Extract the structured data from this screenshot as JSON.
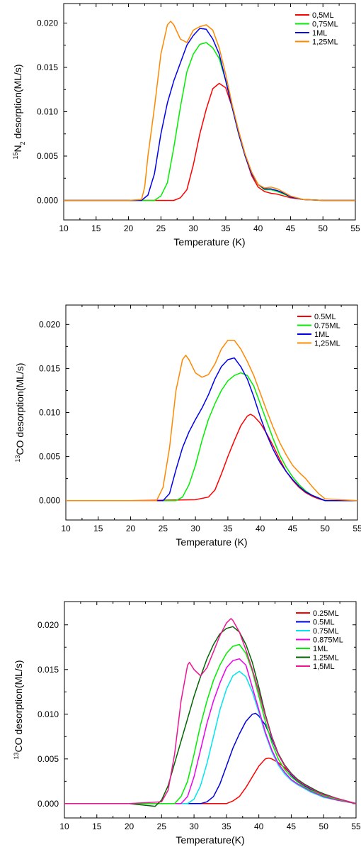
{
  "chart_data": [
    {
      "type": "line",
      "xlabel": "Temperature (K)",
      "ylabel_sup": "15",
      "ylabel_main_a": "N",
      "ylabel_sub": "2",
      "ylabel_main_b": " desorption(ML/s)",
      "xlim": [
        10,
        55
      ],
      "ylim": [
        -0.0022,
        0.0222
      ],
      "xticks": [
        "10",
        "15",
        "20",
        "25",
        "30",
        "35",
        "40",
        "45",
        "50",
        "55"
      ],
      "yticks": [
        "0.000",
        "0.005",
        "0.010",
        "0.015",
        "0.020"
      ],
      "grid": false,
      "legend_position": "top-right",
      "series": [
        {
          "name": "0,5ML",
          "color": "#ff0000",
          "x": [
            10,
            20,
            25,
            27,
            28,
            29,
            30,
            31,
            32,
            33,
            34,
            35,
            36,
            37,
            38,
            39,
            40,
            41,
            42,
            43,
            44,
            45,
            47,
            50,
            55
          ],
          "y": [
            0,
            0,
            0,
            0,
            0.0003,
            0.0012,
            0.004,
            0.0075,
            0.0103,
            0.0126,
            0.0132,
            0.0127,
            0.0105,
            0.0078,
            0.005,
            0.0028,
            0.0015,
            0.001,
            0.0008,
            0.0007,
            0.0005,
            0.0003,
            0.0001,
            0,
            0
          ]
        },
        {
          "name": "0,75ML",
          "color": "#00ee00",
          "x": [
            10,
            20,
            24,
            25,
            26,
            27,
            28,
            29,
            30,
            31,
            32,
            33,
            34,
            35,
            36,
            37,
            38,
            39,
            40,
            41,
            42,
            43,
            44,
            45,
            47,
            50,
            55
          ],
          "y": [
            0,
            0,
            0,
            0.0005,
            0.002,
            0.006,
            0.0105,
            0.0145,
            0.0165,
            0.0176,
            0.0178,
            0.0172,
            0.016,
            0.0135,
            0.0105,
            0.0075,
            0.005,
            0.003,
            0.0018,
            0.0012,
            0.0012,
            0.001,
            0.0007,
            0.0004,
            0.0001,
            0,
            0
          ]
        },
        {
          "name": "1ML",
          "color": "#0000ee",
          "x": [
            10,
            20,
            22,
            23,
            24,
            25,
            26,
            27,
            28,
            29,
            30,
            31,
            32,
            33,
            34,
            35,
            36,
            37,
            38,
            39,
            40,
            41,
            42,
            43,
            44,
            45,
            47,
            50,
            55
          ],
          "y": [
            0,
            0,
            0,
            0.0006,
            0.003,
            0.0075,
            0.011,
            0.0135,
            0.0155,
            0.0175,
            0.0186,
            0.0194,
            0.0193,
            0.0182,
            0.0165,
            0.0135,
            0.0105,
            0.0075,
            0.005,
            0.003,
            0.0018,
            0.0013,
            0.0013,
            0.0011,
            0.0008,
            0.0004,
            0.0001,
            0,
            0
          ]
        },
        {
          "name": "1,25ML",
          "color": "#ff8800",
          "x": [
            10,
            20,
            22,
            22.5,
            23,
            24,
            25,
            26,
            26.5,
            27,
            28,
            29,
            30,
            31,
            32,
            33,
            34,
            35,
            36,
            37,
            38,
            39,
            40,
            41,
            42,
            43,
            44,
            45,
            47,
            50,
            55
          ],
          "y": [
            0,
            0,
            0.0001,
            0.0015,
            0.005,
            0.0105,
            0.0165,
            0.0198,
            0.0202,
            0.0198,
            0.0182,
            0.0178,
            0.0192,
            0.0196,
            0.0198,
            0.0192,
            0.0172,
            0.0142,
            0.0108,
            0.0078,
            0.0052,
            0.0032,
            0.0018,
            0.0014,
            0.0015,
            0.0013,
            0.0009,
            0.0005,
            0.0001,
            0,
            0
          ]
        }
      ]
    },
    {
      "type": "line",
      "xlabel": "Temperature (K)",
      "ylabel_sup": "13",
      "ylabel_main_a": "CO desorption(ML/s)",
      "ylabel_sub": "",
      "ylabel_main_b": "",
      "xlim": [
        10,
        55
      ],
      "ylim": [
        -0.0022,
        0.0222
      ],
      "xticks": [
        "10",
        "15",
        "20",
        "25",
        "30",
        "35",
        "40",
        "45",
        "50",
        "55"
      ],
      "yticks": [
        "0.000",
        "0.005",
        "0.010",
        "0.015",
        "0.020"
      ],
      "grid": false,
      "legend_position": "top-right",
      "series": [
        {
          "name": "0.5ML",
          "color": "#ff0000",
          "x": [
            10,
            20,
            30,
            32,
            33,
            34,
            35,
            36,
            37,
            38,
            38.5,
            39,
            40,
            41,
            42,
            43,
            44,
            45,
            46,
            47,
            48,
            49,
            50,
            55
          ],
          "y": [
            0,
            0,
            0.0001,
            0.0004,
            0.0012,
            0.003,
            0.005,
            0.0068,
            0.0085,
            0.0096,
            0.0098,
            0.0096,
            0.0088,
            0.0076,
            0.0062,
            0.0047,
            0.0033,
            0.0023,
            0.0015,
            0.0009,
            0.0005,
            0.0002,
            0,
            0
          ]
        },
        {
          "name": "0.75ML",
          "color": "#00ee00",
          "x": [
            10,
            20,
            27,
            28,
            29,
            30,
            31,
            32,
            33,
            34,
            35,
            36,
            37,
            38,
            39,
            40,
            41,
            42,
            43,
            44,
            45,
            46,
            47,
            48,
            49,
            50,
            55
          ],
          "y": [
            0,
            0,
            0,
            0.0004,
            0.0018,
            0.004,
            0.0068,
            0.0092,
            0.011,
            0.0125,
            0.0136,
            0.0142,
            0.0145,
            0.0142,
            0.013,
            0.011,
            0.009,
            0.007,
            0.0052,
            0.0038,
            0.0027,
            0.0018,
            0.0011,
            0.0006,
            0.0003,
            0,
            0
          ]
        },
        {
          "name": "1ML",
          "color": "#0000ee",
          "x": [
            10,
            20,
            25,
            26,
            27,
            28,
            29,
            30,
            31,
            32,
            33,
            34,
            35,
            36,
            37,
            38,
            39,
            40,
            41,
            42,
            43,
            44,
            45,
            46,
            47,
            48,
            49,
            50,
            55
          ],
          "y": [
            0,
            0,
            0,
            0.0008,
            0.0035,
            0.006,
            0.0078,
            0.0092,
            0.0105,
            0.012,
            0.0138,
            0.0152,
            0.016,
            0.0162,
            0.0152,
            0.0138,
            0.0118,
            0.0095,
            0.0075,
            0.0058,
            0.0044,
            0.0033,
            0.0024,
            0.0016,
            0.001,
            0.0006,
            0.0003,
            0,
            0
          ]
        },
        {
          "name": "1,25ML",
          "color": "#ff8800",
          "x": [
            10,
            20,
            24,
            25,
            26,
            27,
            28,
            28.5,
            29,
            30,
            31,
            32,
            33,
            34,
            35,
            36,
            37,
            38,
            39,
            40,
            41,
            42,
            43,
            44,
            45,
            46,
            47,
            48,
            49,
            50,
            55
          ],
          "y": [
            0,
            0,
            0,
            0.0015,
            0.006,
            0.0125,
            0.016,
            0.0165,
            0.016,
            0.0145,
            0.014,
            0.0143,
            0.0155,
            0.0172,
            0.0182,
            0.0182,
            0.0172,
            0.0158,
            0.0142,
            0.0122,
            0.0102,
            0.0083,
            0.0066,
            0.0052,
            0.004,
            0.0032,
            0.0025,
            0.0016,
            0.0008,
            0.0002,
            0
          ]
        }
      ]
    },
    {
      "type": "line",
      "xlabel": "Temperature(K)",
      "ylabel_sup": "13",
      "ylabel_main_a": "CO desorption(ML/s)",
      "ylabel_sub": "",
      "ylabel_main_b": "",
      "xlim": [
        10,
        55
      ],
      "ylim": [
        -0.0016,
        0.0226
      ],
      "xticks": [
        "10",
        "15",
        "20",
        "25",
        "30",
        "35",
        "40",
        "45",
        "50",
        "55"
      ],
      "yticks": [
        "0.000",
        "0.005",
        "0.010",
        "0.015",
        "0.020"
      ],
      "grid": false,
      "legend_position": "top-right",
      "series": [
        {
          "name": "0.25ML",
          "color": "#ff0000",
          "x": [
            10,
            20,
            30,
            35,
            36,
            37,
            38,
            39,
            40,
            41,
            41.5,
            42,
            43,
            44,
            45,
            46,
            47,
            48,
            49,
            50,
            52,
            55
          ],
          "y": [
            0,
            0,
            0,
            0,
            0.0003,
            0.0008,
            0.0018,
            0.003,
            0.0042,
            0.005,
            0.0051,
            0.005,
            0.0046,
            0.004,
            0.0033,
            0.0026,
            0.0021,
            0.0017,
            0.0013,
            0.001,
            0.0006,
            0
          ]
        },
        {
          "name": "0.5ML",
          "color": "#0000dd",
          "x": [
            10,
            20,
            31,
            32,
            33,
            34,
            35,
            36,
            37,
            38,
            39,
            39.5,
            40,
            41,
            42,
            43,
            44,
            45,
            46,
            47,
            48,
            49,
            50,
            52,
            55
          ],
          "y": [
            0,
            0,
            0,
            0.0002,
            0.0008,
            0.0022,
            0.0042,
            0.0062,
            0.0078,
            0.0092,
            0.01,
            0.0101,
            0.0098,
            0.0088,
            0.0072,
            0.0055,
            0.0042,
            0.0032,
            0.0025,
            0.002,
            0.0016,
            0.0012,
            0.0009,
            0.0005,
            0
          ]
        },
        {
          "name": "0.75ML",
          "color": "#00e5ee",
          "x": [
            10,
            20,
            29,
            30,
            31,
            32,
            33,
            34,
            35,
            36,
            37,
            38,
            39,
            40,
            41,
            42,
            43,
            44,
            45,
            46,
            47,
            48,
            49,
            50,
            52,
            55
          ],
          "y": [
            0,
            0,
            0,
            0.0005,
            0.002,
            0.0045,
            0.0075,
            0.0105,
            0.0128,
            0.0143,
            0.0148,
            0.0142,
            0.0125,
            0.0102,
            0.0078,
            0.0058,
            0.0043,
            0.0033,
            0.0026,
            0.0021,
            0.0017,
            0.0013,
            0.001,
            0.0007,
            0.0004,
            0
          ]
        },
        {
          "name": "0.875ML",
          "color": "#ee00ee",
          "x": [
            10,
            20,
            28,
            29,
            30,
            31,
            32,
            33,
            34,
            35,
            36,
            37,
            38,
            39,
            40,
            41,
            42,
            43,
            44,
            45,
            46,
            47,
            48,
            49,
            50,
            52,
            55
          ],
          "y": [
            0,
            0,
            0,
            0.0008,
            0.003,
            0.006,
            0.009,
            0.0115,
            0.0135,
            0.0152,
            0.016,
            0.0162,
            0.0155,
            0.013,
            0.0105,
            0.008,
            0.006,
            0.0045,
            0.0035,
            0.0027,
            0.0022,
            0.0018,
            0.0014,
            0.0011,
            0.0008,
            0.0004,
            0
          ]
        },
        {
          "name": "1ML",
          "color": "#00ee00",
          "x": [
            10,
            20,
            27,
            28,
            29,
            30,
            31,
            32,
            33,
            34,
            35,
            36,
            37,
            38,
            39,
            40,
            41,
            42,
            43,
            44,
            45,
            46,
            47,
            48,
            49,
            50,
            52,
            55
          ],
          "y": [
            0,
            0,
            0,
            0.0008,
            0.0025,
            0.0055,
            0.0088,
            0.0115,
            0.0138,
            0.0155,
            0.0168,
            0.0176,
            0.0178,
            0.0168,
            0.0148,
            0.012,
            0.0092,
            0.0068,
            0.005,
            0.0038,
            0.003,
            0.0024,
            0.0019,
            0.0015,
            0.0012,
            0.0009,
            0.0005,
            0
          ]
        },
        {
          "name": "1.25ML",
          "color": "#006400",
          "x": [
            10,
            20,
            24,
            25,
            26,
            27,
            28,
            29,
            30,
            31,
            32,
            33,
            34,
            35,
            36,
            37,
            38,
            39,
            40,
            41,
            42,
            43,
            44,
            45,
            46,
            47,
            48,
            49,
            50,
            52,
            55
          ],
          "y": [
            0,
            0,
            -0.0003,
            0.0004,
            0.002,
            0.0045,
            0.007,
            0.0095,
            0.012,
            0.0142,
            0.0162,
            0.0178,
            0.019,
            0.0196,
            0.0198,
            0.0192,
            0.0178,
            0.0158,
            0.013,
            0.01,
            0.0075,
            0.0056,
            0.0043,
            0.0034,
            0.0027,
            0.0022,
            0.0018,
            0.0014,
            0.0011,
            0.0006,
            0
          ]
        },
        {
          "name": "1,5ML",
          "color": "#ee1493",
          "x": [
            10,
            20,
            25,
            26,
            27,
            28,
            29,
            29.3,
            30,
            31,
            32,
            33,
            34,
            35,
            35.7,
            36,
            37,
            38,
            39,
            40,
            41,
            42,
            43,
            44,
            45,
            46,
            47,
            48,
            49,
            50,
            52,
            55
          ],
          "y": [
            0,
            0,
            0.0002,
            0.0015,
            0.0055,
            0.0115,
            0.0155,
            0.0158,
            0.015,
            0.0143,
            0.0152,
            0.017,
            0.0188,
            0.0202,
            0.0207,
            0.0205,
            0.0192,
            0.0172,
            0.015,
            0.0125,
            0.0098,
            0.0074,
            0.0055,
            0.0042,
            0.0033,
            0.0026,
            0.0021,
            0.0017,
            0.0013,
            0.001,
            0.0006,
            0
          ]
        }
      ]
    }
  ]
}
